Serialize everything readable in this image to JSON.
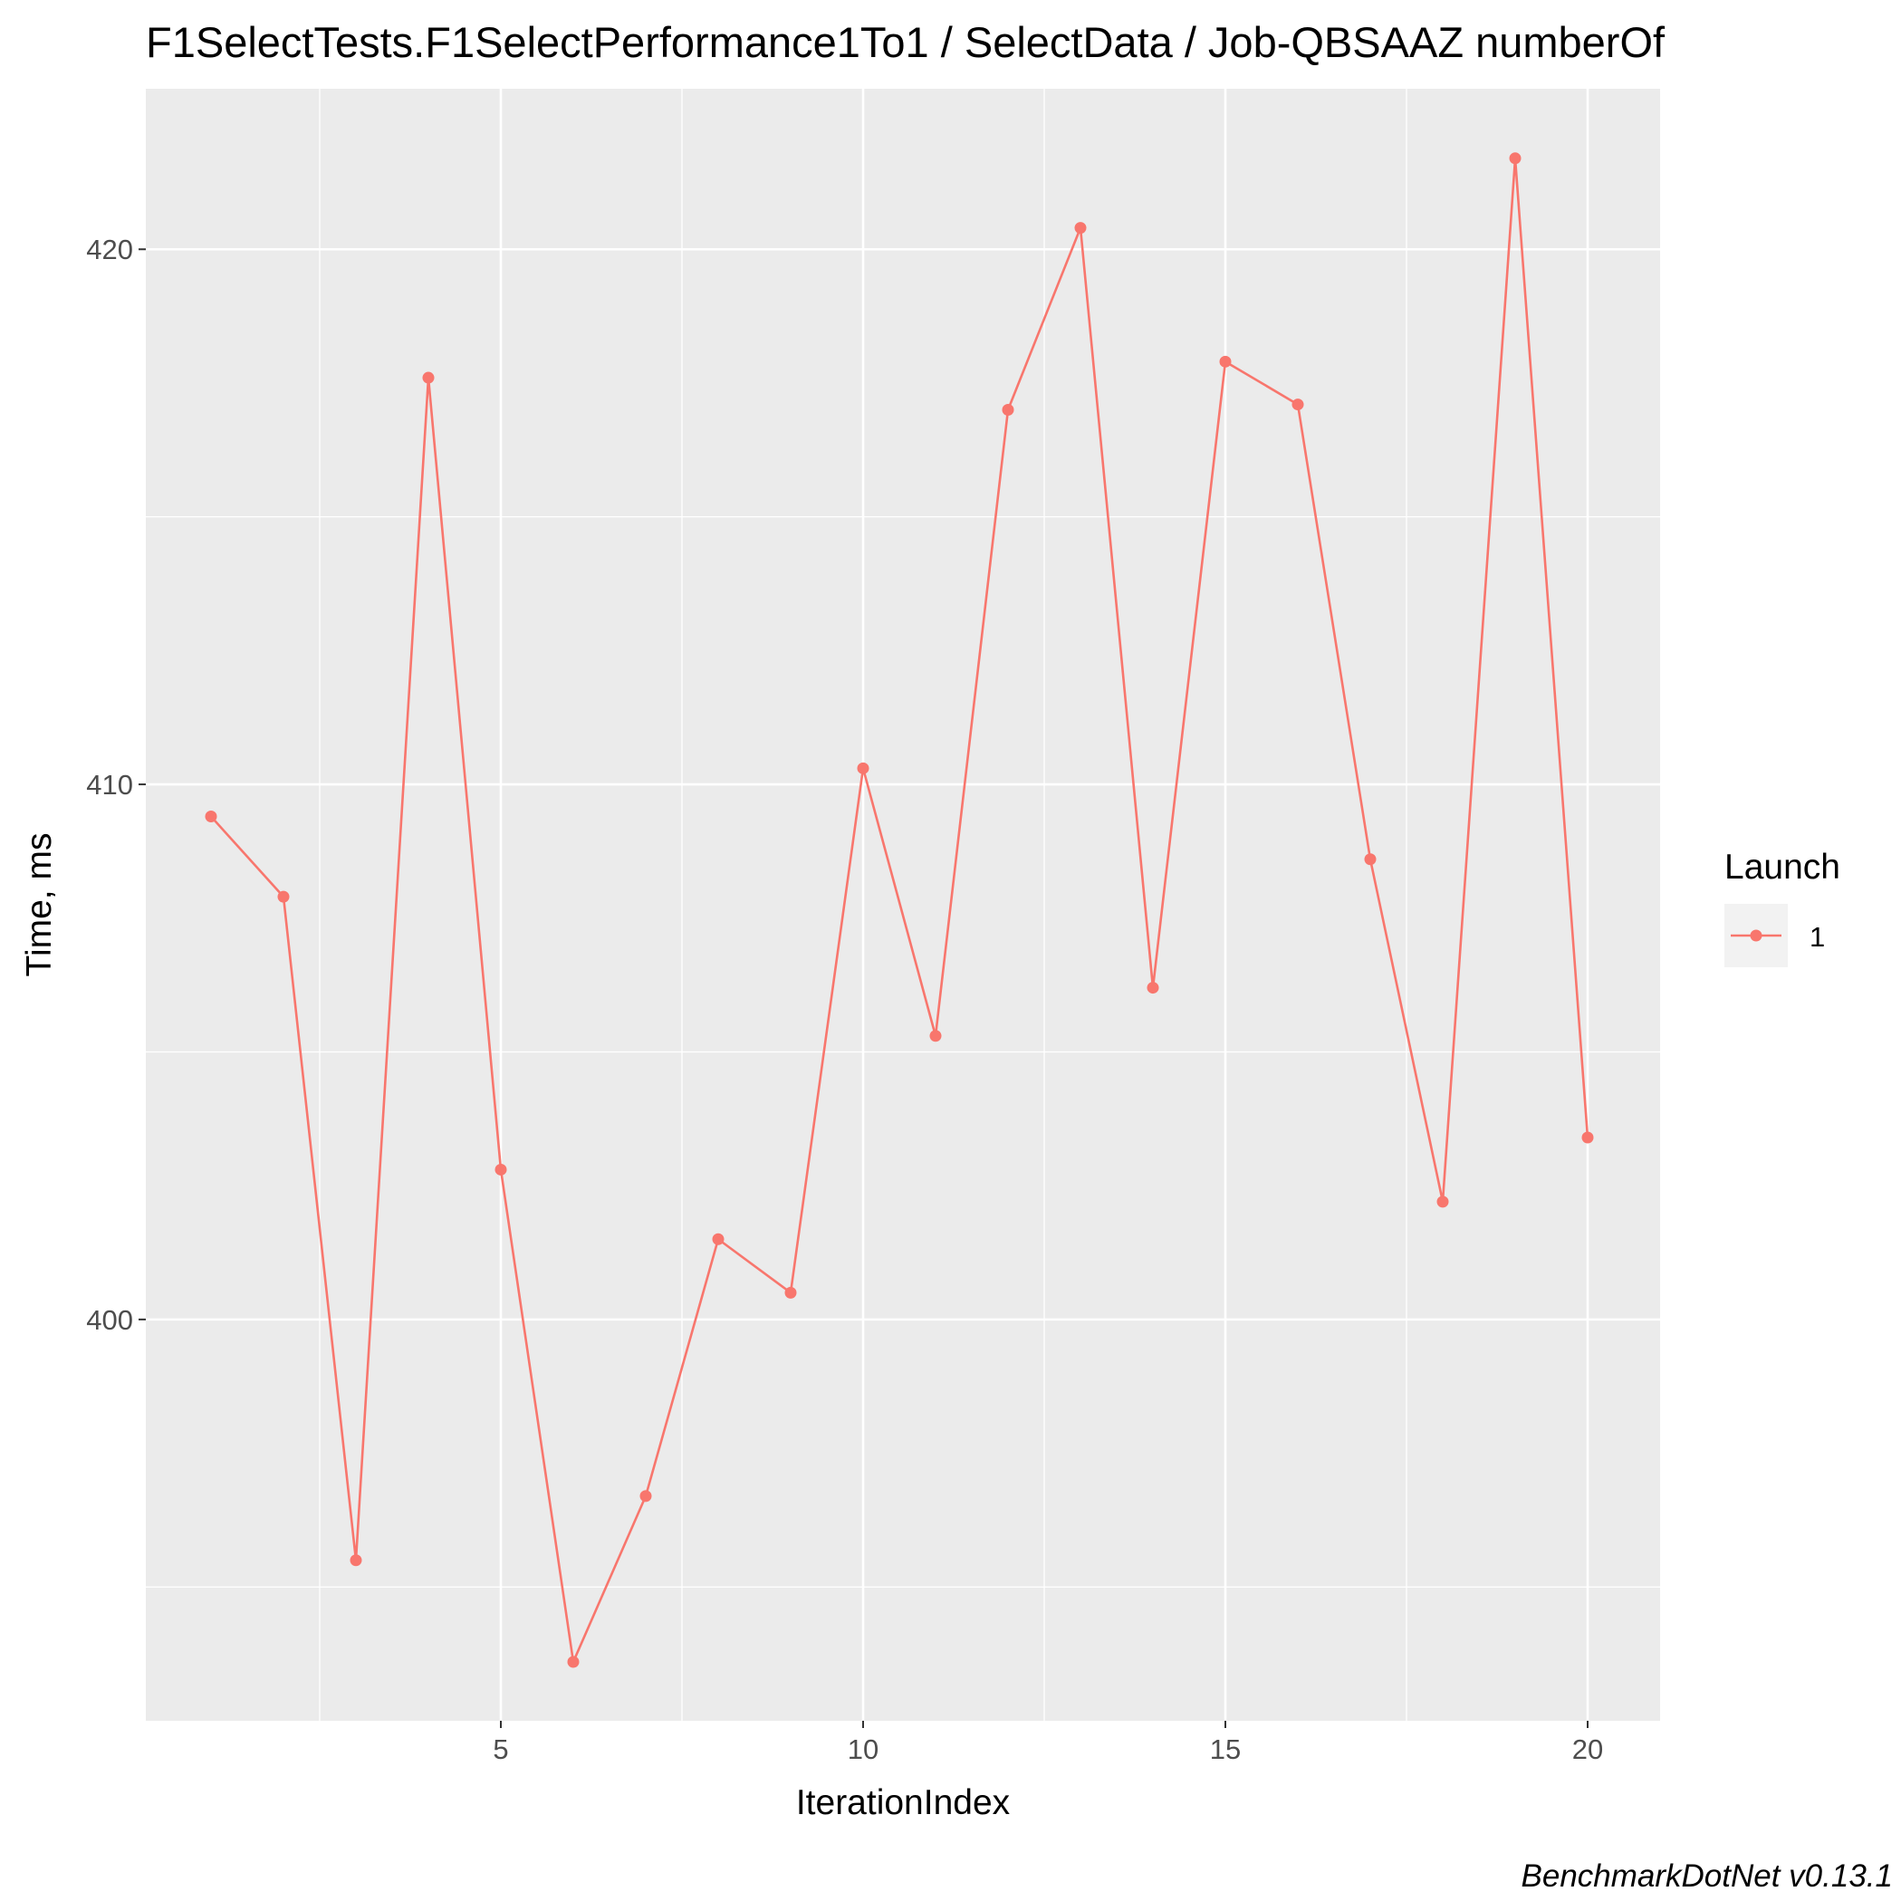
{
  "chart_data": {
    "type": "line",
    "title": "F1SelectTests.F1SelectPerformance1To1 / SelectData / Job-QBSAAZ numberOf",
    "xlabel": "IterationIndex",
    "ylabel": "Time, ms",
    "caption": "BenchmarkDotNet v0.13.1",
    "xlim": [
      0.1,
      21.0
    ],
    "ylim": [
      392.5,
      423.0
    ],
    "x_ticks": [
      5,
      10,
      15,
      20
    ],
    "x_tick_labels": [
      "5",
      "10",
      "15",
      "20"
    ],
    "y_ticks": [
      400,
      410,
      420
    ],
    "y_tick_labels": [
      "400",
      "410",
      "420"
    ],
    "grid": true,
    "legend": {
      "title": "Launch",
      "position": "right",
      "entries": [
        "1"
      ]
    },
    "series": [
      {
        "name": "1",
        "color": "#F8766D",
        "x": [
          1,
          2,
          3,
          4,
          5,
          6,
          7,
          8,
          9,
          10,
          11,
          12,
          13,
          14,
          15,
          16,
          17,
          18,
          19,
          20
        ],
        "y": [
          409.4,
          407.9,
          395.5,
          417.6,
          402.8,
          393.6,
          396.7,
          401.5,
          400.5,
          410.3,
          405.3,
          417.0,
          420.4,
          406.2,
          417.9,
          417.1,
          408.6,
          402.2,
          421.7,
          403.4
        ]
      }
    ]
  },
  "colors": {
    "panel_background": "#EBEBEB",
    "grid_line": "#FFFFFF",
    "series_color": "#F8766D",
    "legend_key_background": "#F2F2F2"
  }
}
